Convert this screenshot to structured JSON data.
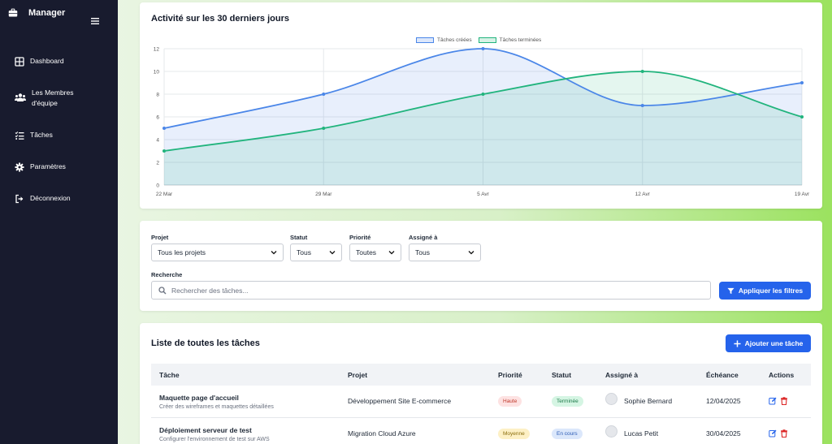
{
  "sidebar": {
    "brand_title": "Manager",
    "items": [
      {
        "label": "Dashboard",
        "icon": "dashboard-icon"
      },
      {
        "label": "Les Membres d'équipe",
        "icon": "users-icon"
      },
      {
        "label": "Tâches",
        "icon": "tasks-icon"
      },
      {
        "label": "Paramètres",
        "icon": "gear-icon"
      },
      {
        "label": "Déconnexion",
        "icon": "logout-icon"
      }
    ]
  },
  "chart_section": {
    "title": "Activité sur les 30 derniers jours"
  },
  "chart_data": {
    "type": "line",
    "title": "Activité sur les 30 derniers jours",
    "x": [
      "22 Mar",
      "29 Mar",
      "5 Avr",
      "12 Avr",
      "19 Avr"
    ],
    "series": [
      {
        "name": "Tâches créées",
        "values": [
          5,
          8,
          12,
          7,
          9
        ],
        "color": "#4a86e8"
      },
      {
        "name": "Tâches terminées",
        "values": [
          3,
          5,
          8,
          10,
          6
        ],
        "color": "#21b47d"
      }
    ],
    "ylim": [
      0,
      12
    ],
    "yticks": [
      0,
      2,
      4,
      6,
      8,
      10,
      12
    ],
    "grid": true,
    "legend_position": "top-center",
    "fill": true
  },
  "filters": {
    "project": {
      "label": "Projet",
      "value": "Tous les projets"
    },
    "status": {
      "label": "Statut",
      "value": "Tous"
    },
    "priority": {
      "label": "Priorité",
      "value": "Toutes"
    },
    "assignee": {
      "label": "Assigné à",
      "value": "Tous"
    },
    "search": {
      "label": "Recherche",
      "placeholder": "Rechercher des tâches..."
    },
    "apply_label": "Appliquer les filtres"
  },
  "tasks": {
    "title": "Liste de toutes les tâches",
    "add_label": "Ajouter une tâche",
    "columns": [
      "Tâche",
      "Projet",
      "Priorité",
      "Statut",
      "Assigné à",
      "Échéance",
      "Actions"
    ],
    "rows": [
      {
        "name": "Maquette page d'accueil",
        "description": "Créer des wireframes et maquettes détaillées",
        "project": "Développement Site E-commerce",
        "priority": "Haute",
        "status": "Terminée",
        "assignee": "Sophie Bernard",
        "due": "12/04/2025"
      },
      {
        "name": "Déploiement serveur de test",
        "description": "Configurer l'environnement de test sur AWS",
        "project": "Migration Cloud Azure",
        "priority": "Moyenne",
        "status": "En cours",
        "assignee": "Lucas Petit",
        "due": "30/04/2025"
      }
    ]
  },
  "colors": {
    "sidebar_bg": "#181b2e",
    "primary": "#2563eb",
    "priority_high_bg": "#fde2e2",
    "priority_high_fg": "#c0392b",
    "priority_medium_bg": "#fdf0c5",
    "priority_medium_fg": "#8a6d0b",
    "status_done_bg": "#d5f5e3",
    "status_done_fg": "#1e7b4b",
    "status_progress_bg": "#dbe7fb",
    "status_progress_fg": "#2b5bb5"
  }
}
